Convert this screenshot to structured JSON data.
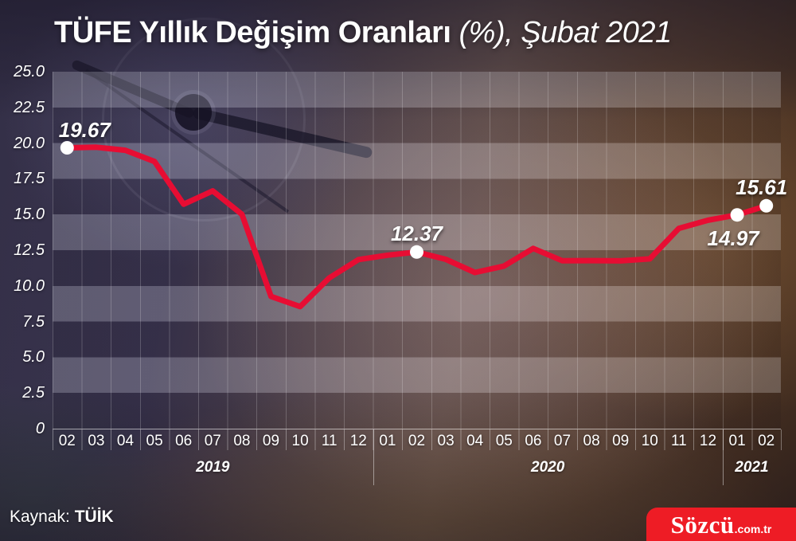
{
  "title": {
    "main": "TÜFE Yıllık Değişim Oranları",
    "suffix": " (%), Şubat 2021"
  },
  "source": {
    "label": "Kaynak: ",
    "value": "TÜİK"
  },
  "logo": {
    "name": "Sözcü",
    "suffix": ".com.tr"
  },
  "colors": {
    "line": "#e70d33",
    "marker": "#ffffff",
    "logo_red": "#ee1c25",
    "text": "#ffffff"
  },
  "chart_data": {
    "type": "line",
    "title": "TÜFE Yıllık Değişim Oranları (%), Şubat 2021",
    "x": [
      "02",
      "03",
      "04",
      "05",
      "06",
      "07",
      "08",
      "09",
      "10",
      "11",
      "12",
      "01",
      "02",
      "03",
      "04",
      "05",
      "06",
      "07",
      "08",
      "09",
      "10",
      "11",
      "12",
      "01",
      "02"
    ],
    "year_groups": [
      {
        "label": "2019",
        "span": 11
      },
      {
        "label": "2020",
        "span": 12
      },
      {
        "label": "2021",
        "span": 2
      }
    ],
    "series": [
      {
        "name": "TÜFE yıllık değişim (%)",
        "values": [
          19.67,
          19.71,
          19.5,
          18.71,
          15.72,
          16.65,
          15.01,
          9.26,
          8.55,
          10.56,
          11.84,
          12.15,
          12.37,
          11.86,
          10.94,
          11.39,
          12.62,
          11.76,
          11.77,
          11.75,
          11.89,
          14.03,
          14.6,
          14.97,
          15.61
        ]
      }
    ],
    "ylim": [
      0,
      25
    ],
    "yticks": [
      0,
      2.5,
      5,
      7.5,
      10,
      12.5,
      15,
      17.5,
      20,
      22.5,
      25
    ],
    "ytick_labels": [
      "0",
      "2.5",
      "5.0",
      "7.5",
      "10.0",
      "12.5",
      "15.0",
      "17.5",
      "20.0",
      "22.5",
      "25.0"
    ],
    "grid": "horizontal-bands and vertical month lines",
    "legend": "none",
    "annotations": [
      {
        "index": 0,
        "text": "19.67",
        "placement": "above"
      },
      {
        "index": 12,
        "text": "12.37",
        "placement": "above"
      },
      {
        "index": 23,
        "text": "14.97",
        "placement": "below"
      },
      {
        "index": 24,
        "text": "15.61",
        "placement": "above"
      }
    ]
  }
}
